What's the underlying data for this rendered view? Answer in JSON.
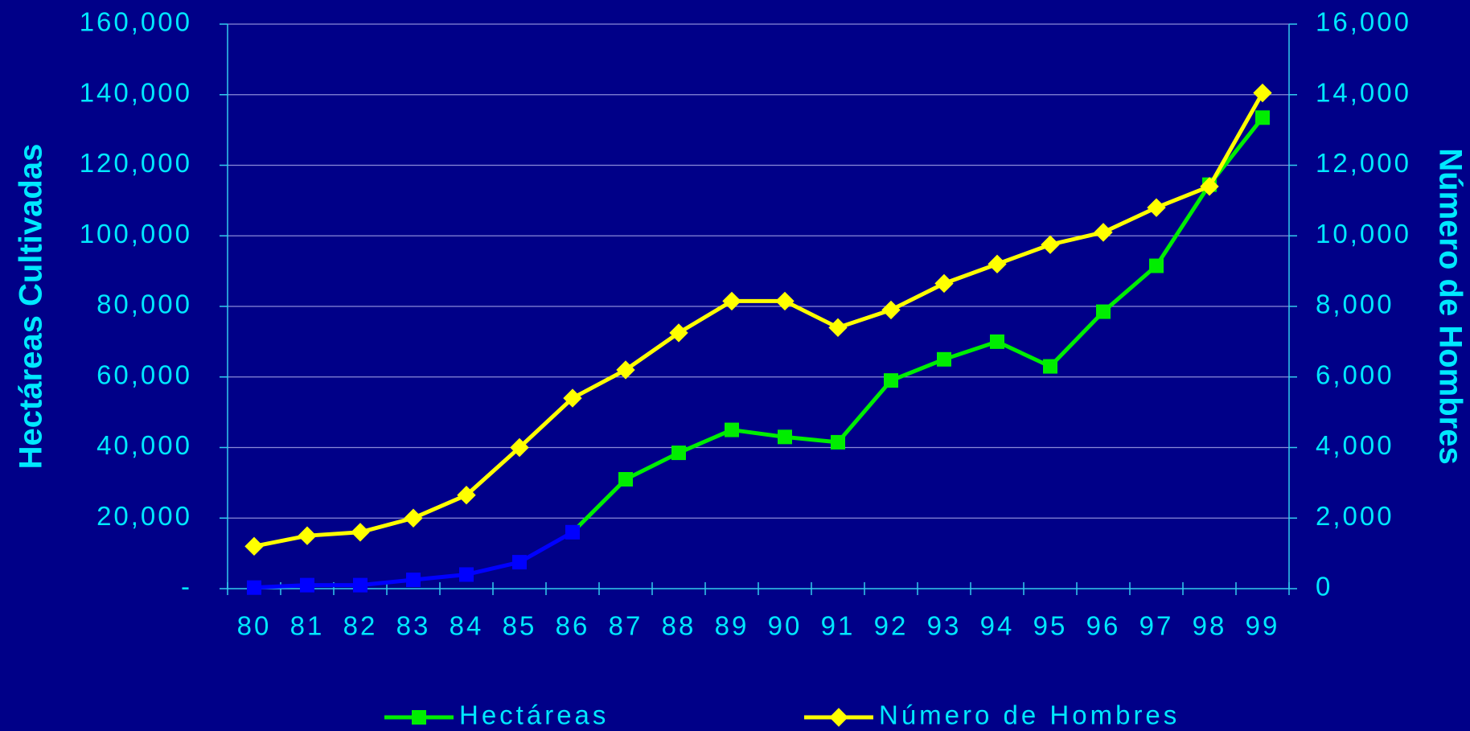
{
  "chart_data": {
    "type": "line",
    "categories": [
      "80",
      "81",
      "82",
      "83",
      "84",
      "85",
      "86",
      "87",
      "88",
      "89",
      "90",
      "91",
      "92",
      "93",
      "94",
      "95",
      "96",
      "97",
      "98",
      "99"
    ],
    "ylabel": "Hectáreas Cultivadas",
    "y2label": "Número de Hombres",
    "ylim": [
      0,
      160000
    ],
    "yticks": [
      {
        "value": 0,
        "label": "-"
      },
      {
        "value": 20000,
        "label": "20,000"
      },
      {
        "value": 40000,
        "label": "40,000"
      },
      {
        "value": 60000,
        "label": "60,000"
      },
      {
        "value": 80000,
        "label": "80,000"
      },
      {
        "value": 100000,
        "label": "100,000"
      },
      {
        "value": 120000,
        "label": "120,000"
      },
      {
        "value": 140000,
        "label": "140,000"
      },
      {
        "value": 160000,
        "label": "160,000"
      }
    ],
    "y2lim": [
      0,
      16000
    ],
    "y2ticks": [
      0,
      {
        "value": 2000,
        "label": "2,000"
      },
      {
        "value": 4000,
        "label": "4,000"
      },
      {
        "value": 6000,
        "label": "6,000"
      },
      {
        "value": 8000,
        "label": "8,000"
      },
      {
        "value": 10000,
        "label": "10,000"
      },
      {
        "value": 12000,
        "label": "12,000"
      },
      {
        "value": 14000,
        "label": "14,000"
      },
      {
        "value": 16000,
        "label": "16,000"
      }
    ],
    "grid": true,
    "legend": "bottom",
    "series": [
      {
        "name": "Hectáreas",
        "color": "#00ee00",
        "marker": "square",
        "point_colors": [
          "#0000ff",
          "#0000ff",
          "#0000ff",
          "#0000ff",
          "#0000ff",
          "#0000ff",
          "#0000ff",
          "#00ee00",
          "#00ee00",
          "#00ee00",
          "#00ee00",
          "#00ee00",
          "#00ee00",
          "#00ee00",
          "#00ee00",
          "#00ee00",
          "#00ee00",
          "#00ee00",
          "#00ee00",
          "#00ee00"
        ],
        "values": [
          300,
          1000,
          1000,
          2500,
          4000,
          7500,
          16000,
          31000,
          38500,
          45000,
          43000,
          41500,
          59000,
          65000,
          70000,
          63000,
          78500,
          91500,
          114500,
          133500
        ]
      },
      {
        "name": "Número de Hombres",
        "color": "#ffff00",
        "marker": "diamond",
        "axis": "y2",
        "values": [
          1200,
          1500,
          1600,
          2000,
          2650,
          4000,
          5400,
          6200,
          7250,
          8150,
          8150,
          7400,
          7900,
          8650,
          9200,
          9750,
          10100,
          10800,
          11400,
          14050
        ]
      }
    ]
  }
}
